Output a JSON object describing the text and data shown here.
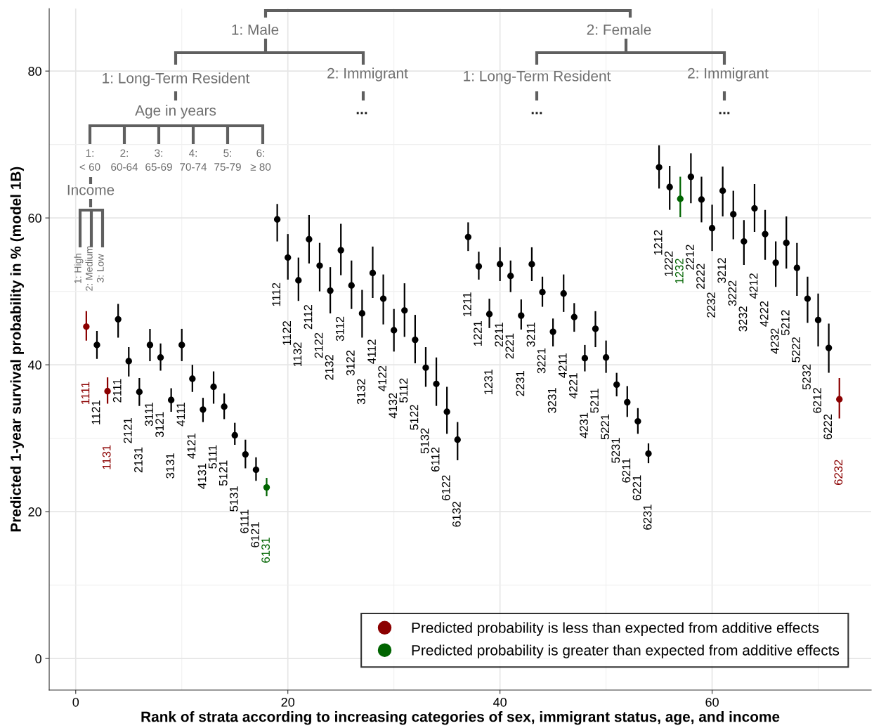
{
  "chart_data": {
    "type": "scatter",
    "xlabel": "Rank of strata according to increasing categories of sex, immigrant status, age, and income",
    "ylabel": "Predicted 1-year survival probability in % (model 1B)",
    "xlim": [
      -2.5,
      75
    ],
    "ylim": [
      -4.3,
      88.5
    ],
    "xticks": [
      0,
      20,
      40,
      60
    ],
    "yticks": [
      0,
      20,
      40,
      60,
      80
    ],
    "grid": true,
    "legend": "bottom right",
    "marker": "circle",
    "series": [
      {
        "color": "#000000",
        "x": [
          2,
          4,
          5,
          6,
          7,
          8,
          9,
          10,
          11,
          12,
          13,
          14,
          15,
          16,
          17,
          19,
          20,
          21,
          22,
          23,
          24,
          25,
          26,
          27,
          28,
          29,
          30,
          31,
          32,
          33,
          34,
          35,
          36,
          37,
          38,
          39,
          40,
          41,
          42,
          43,
          44,
          45,
          46,
          47,
          48,
          49,
          50,
          51,
          52,
          53,
          54,
          55,
          56,
          58,
          59,
          60,
          61,
          62,
          63,
          64,
          65,
          66,
          67,
          68,
          69,
          70,
          71
        ],
        "values": [
          42.7,
          46.2,
          40.5,
          36.3,
          42.7,
          41.0,
          35.2,
          42.7,
          38.1,
          33.9,
          37.0,
          34.3,
          30.4,
          27.8,
          25.7,
          59.8,
          54.6,
          51.5,
          57.1,
          53.5,
          50.1,
          55.6,
          50.8,
          47.0,
          52.5,
          49.0,
          44.7,
          47.4,
          43.4,
          39.6,
          37.4,
          33.6,
          29.8,
          57.4,
          53.4,
          46.9,
          53.7,
          52.1,
          46.7,
          53.7,
          49.9,
          44.5,
          49.7,
          46.5,
          40.9,
          44.9,
          41.0,
          37.3,
          34.9,
          32.3,
          27.9,
          66.9,
          64.2,
          65.6,
          62.5,
          58.6,
          63.7,
          60.5,
          56.8,
          61.3,
          57.8,
          53.9,
          56.6,
          53.2,
          49.0,
          46.1,
          42.3
        ],
        "errors": [
          [
            40.8,
            44.6
          ],
          [
            43.7,
            48.3
          ],
          [
            38.4,
            42.4
          ],
          [
            34.4,
            38.2
          ],
          [
            40.5,
            44.9
          ],
          [
            39.2,
            42.9
          ],
          [
            33.6,
            36.8
          ],
          [
            40.5,
            44.9
          ],
          [
            36.3,
            40.0
          ],
          [
            32.2,
            35.5
          ],
          [
            34.7,
            39.1
          ],
          [
            32.6,
            36.1
          ],
          [
            29.1,
            32.1
          ],
          [
            25.9,
            29.8
          ],
          [
            24.2,
            27.4
          ],
          [
            56.8,
            61.9
          ],
          [
            51.6,
            57.8
          ],
          [
            48.7,
            54.6
          ],
          [
            53.8,
            60.4
          ],
          [
            50.0,
            56.6
          ],
          [
            47.0,
            53.3
          ],
          [
            52.2,
            59.2
          ],
          [
            47.6,
            54.2
          ],
          [
            43.7,
            50.2
          ],
          [
            49.1,
            56.1
          ],
          [
            45.5,
            52.3
          ],
          [
            41.8,
            47.6
          ],
          [
            43.8,
            51.1
          ],
          [
            40.2,
            46.8
          ],
          [
            37.0,
            42.4
          ],
          [
            34.4,
            41.0
          ],
          [
            30.6,
            37.0
          ],
          [
            27.0,
            32.2
          ],
          [
            55.5,
            59.4
          ],
          [
            51.6,
            55.4
          ],
          [
            45.0,
            49.0
          ],
          [
            51.4,
            56.0
          ],
          [
            49.9,
            54.2
          ],
          [
            44.8,
            48.9
          ],
          [
            51.4,
            56.0
          ],
          [
            47.9,
            52.0
          ],
          [
            42.5,
            46.3
          ],
          [
            47.2,
            52.3
          ],
          [
            44.5,
            48.4
          ],
          [
            39.1,
            42.7
          ],
          [
            42.4,
            47.3
          ],
          [
            38.9,
            43.3
          ],
          [
            35.7,
            38.9
          ],
          [
            32.9,
            37.1
          ],
          [
            30.6,
            34.1
          ],
          [
            26.6,
            29.3
          ],
          [
            64.0,
            69.9
          ],
          [
            61.1,
            67.1
          ],
          [
            62.0,
            68.8
          ],
          [
            59.4,
            65.6
          ],
          [
            55.5,
            61.8
          ],
          [
            60.2,
            67.0
          ],
          [
            57.1,
            63.7
          ],
          [
            53.6,
            59.7
          ],
          [
            58.1,
            64.6
          ],
          [
            54.3,
            61.1
          ],
          [
            50.6,
            56.8
          ],
          [
            53.1,
            60.2
          ],
          [
            49.4,
            56.6
          ],
          [
            45.7,
            52.0
          ],
          [
            42.5,
            49.7
          ],
          [
            38.9,
            45.6
          ]
        ]
      },
      {
        "name": "Predicted probability is less than expected from additive effects",
        "color": "#8b0000",
        "x": [
          1,
          3,
          72
        ],
        "values": [
          45.2,
          36.4,
          35.3
        ],
        "errors": [
          [
            43.3,
            47.3
          ],
          [
            34.7,
            38.3
          ],
          [
            32.7,
            38.2
          ]
        ]
      },
      {
        "name": "Predicted probability is greater than expected from additive effects",
        "color": "#006400",
        "x": [
          18,
          57
        ],
        "values": [
          23.3,
          62.6
        ],
        "errors": [
          [
            22.1,
            24.6
          ],
          [
            60.1,
            65.6
          ]
        ]
      }
    ],
    "annotations": [
      "1: Male",
      "2: Female",
      "1: Long-Term Resident",
      "2: Immigrant",
      "1: Long-Term Resident",
      "2: Immigrant",
      "Age in years",
      "...",
      "...",
      "...",
      "1:\n< 60",
      "2:\n60-64",
      "3:\n65-69",
      "4:\n70-74",
      "5:\n75-79",
      "6:\n≥ 80",
      "Income",
      "1: High",
      "2: Medium",
      "3: Low",
      "1111",
      "1121",
      "1131",
      "2111",
      "2121",
      "2131",
      "3111",
      "3121",
      "3131",
      "4111",
      "4121",
      "4131",
      "5111",
      "5121",
      "5131",
      "6111",
      "6121",
      "6131",
      "1112",
      "1122",
      "1132",
      "2112",
      "2122",
      "2132",
      "3112",
      "3122",
      "3132",
      "4112",
      "4122",
      "4132",
      "5112",
      "5122",
      "5132",
      "6112",
      "6122",
      "6132",
      "1211",
      "1221",
      "1231",
      "2211",
      "2221",
      "2231",
      "3211",
      "3221",
      "3231",
      "4211",
      "4221",
      "4231",
      "5211",
      "5221",
      "5231",
      "6211",
      "6221",
      "6231",
      "1212",
      "1222",
      "1232",
      "2212",
      "2222",
      "2232",
      "3212",
      "3222",
      "3232",
      "4212",
      "4222",
      "4232",
      "5212",
      "5222",
      "5232",
      "6212",
      "6222",
      "6232"
    ]
  }
}
